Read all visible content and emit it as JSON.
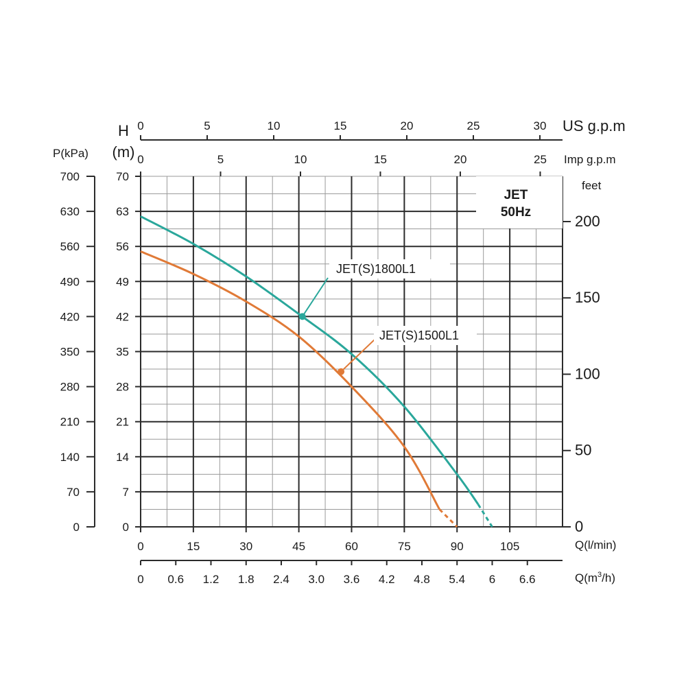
{
  "chart_data": {
    "type": "line",
    "title": "JET",
    "subtitle": "50Hz",
    "xlabel": "Q(l/min)",
    "xlabel2": "Q(m",
    "xlabel2_sup": "3",
    "xlabel2_tail": "/h)",
    "ylabel_head_line1": "H",
    "ylabel_head_line2": "(m)",
    "ylabel_pressure": "P(kPa)",
    "ylabel_feet": "feet",
    "top_axis_us": "US g.p.m",
    "top_axis_imp": "Imp g.p.m",
    "xlim": [
      0,
      120
    ],
    "ylim": [
      0,
      70
    ],
    "x_ticks_lmin": [
      "0",
      "15",
      "30",
      "45",
      "60",
      "75",
      "90",
      "105"
    ],
    "x_ticks_m3h": [
      "0",
      "0.6",
      "1.2",
      "1.8",
      "2.4",
      "3.0",
      "3.6",
      "4.2",
      "4.8",
      "5.4",
      "6",
      "6.6"
    ],
    "y_ticks_head": [
      "0",
      "7",
      "14",
      "21",
      "28",
      "35",
      "42",
      "49",
      "56",
      "63",
      "70"
    ],
    "y_ticks_kpa": [
      "0",
      "70",
      "140",
      "210",
      "280",
      "350",
      "420",
      "490",
      "560",
      "630",
      "700"
    ],
    "y_ticks_feet": [
      "0",
      "50",
      "100",
      "150",
      "200"
    ],
    "top_ticks_us": [
      "0",
      "5",
      "10",
      "15",
      "20",
      "25",
      "30"
    ],
    "top_ticks_imp": [
      "0",
      "5",
      "10",
      "15",
      "20",
      "25"
    ],
    "series": [
      {
        "name": "JET(S)1800L1",
        "color": "#2aa79b",
        "x": [
          0,
          15,
          30,
          45,
          60,
          75,
          90,
          96
        ],
        "y": [
          62,
          56.5,
          50,
          42.5,
          34.5,
          24,
          10.5,
          4.5
        ],
        "dashed_x": [
          96,
          100
        ],
        "dashed_y": [
          4.5,
          0
        ],
        "marker": [
          46,
          42
        ]
      },
      {
        "name": "JET(S)1500L1",
        "color": "#e07a37",
        "x": [
          0,
          15,
          30,
          45,
          60,
          75,
          85
        ],
        "y": [
          55,
          50.5,
          45,
          38,
          28,
          16,
          3.5
        ],
        "dashed_x": [
          85,
          90
        ],
        "dashed_y": [
          3.5,
          0
        ],
        "marker": [
          57,
          31
        ]
      }
    ]
  }
}
